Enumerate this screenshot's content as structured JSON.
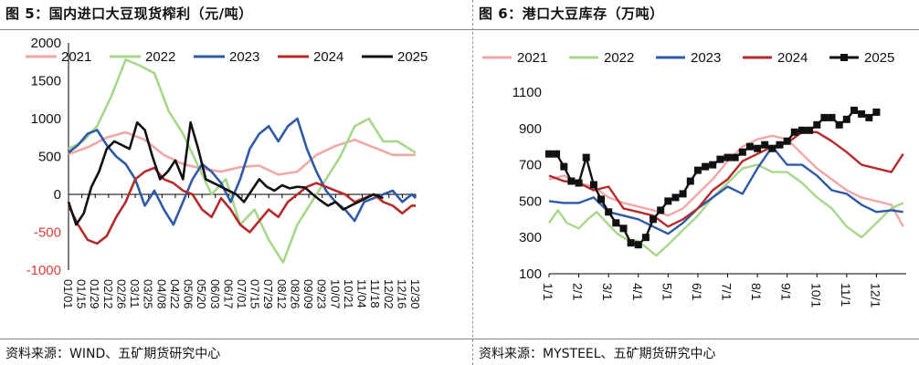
{
  "charts": [
    {
      "title": "图 5：国内进口大豆现货榨利（元/吨）",
      "source": "资料来源：WIND、五矿期货研究中心"
    },
    {
      "title": "图 6：港口大豆库存（万吨）",
      "source": "资料来源：MYSTEEL、五矿期货研究中心"
    }
  ],
  "chart_data": [
    {
      "type": "line",
      "title": "图 5：国内进口大豆现货榨利（元/吨）",
      "xlabel": "",
      "ylabel": "",
      "ylim": [
        -1000,
        2000
      ],
      "yticks": [
        -1000,
        -500,
        0,
        500,
        1000,
        1500,
        2000
      ],
      "xticks": [
        "01/01",
        "01/15",
        "01/29",
        "02/12",
        "02/26",
        "03/11",
        "03/25",
        "04/08",
        "04/22",
        "05/06",
        "05/20",
        "06/03",
        "06/17",
        "07/01",
        "07/15",
        "07/29",
        "08/12",
        "08/26",
        "09/09",
        "09/23",
        "10/07",
        "10/21",
        "11/04",
        "11/18",
        "12/02",
        "12/16",
        "12/30"
      ],
      "legend_position": "top",
      "series": [
        {
          "name": "2021",
          "color": "#f2a7a7",
          "x": [
            0,
            20,
            40,
            60,
            80,
            100,
            120,
            140,
            160,
            180,
            200,
            220,
            240,
            260,
            280,
            300,
            320,
            340,
            364
          ],
          "values": [
            530,
            620,
            750,
            820,
            720,
            520,
            400,
            340,
            300,
            360,
            380,
            260,
            300,
            520,
            640,
            720,
            620,
            520,
            520
          ]
        },
        {
          "name": "2022",
          "color": "#a6d78a",
          "x": [
            0,
            15,
            30,
            45,
            60,
            75,
            90,
            105,
            120,
            135,
            150,
            165,
            180,
            195,
            210,
            225,
            240,
            255,
            270,
            285,
            300,
            315,
            330,
            345,
            364
          ],
          "values": [
            600,
            700,
            900,
            1300,
            1780,
            1700,
            1600,
            1100,
            800,
            400,
            0,
            200,
            -400,
            -200,
            -600,
            -900,
            -400,
            -100,
            200,
            500,
            900,
            1000,
            700,
            700,
            550
          ]
        },
        {
          "name": "2023",
          "color": "#2f5aa8",
          "x": [
            0,
            10,
            20,
            30,
            40,
            50,
            60,
            70,
            80,
            90,
            100,
            110,
            120,
            130,
            140,
            150,
            160,
            170,
            180,
            190,
            200,
            210,
            220,
            230,
            240,
            250,
            260,
            270,
            280,
            290,
            300,
            310,
            320,
            330,
            340,
            350,
            360,
            364
          ],
          "values": [
            550,
            650,
            800,
            850,
            650,
            500,
            400,
            200,
            -150,
            50,
            -200,
            -400,
            -100,
            200,
            400,
            300,
            150,
            -100,
            200,
            600,
            800,
            900,
            700,
            900,
            1000,
            600,
            300,
            50,
            -100,
            -200,
            -350,
            -100,
            -50,
            0,
            50,
            -100,
            0,
            -50
          ]
        },
        {
          "name": "2024",
          "color": "#b72a2a",
          "x": [
            0,
            10,
            20,
            30,
            40,
            50,
            60,
            70,
            80,
            90,
            100,
            110,
            120,
            130,
            140,
            150,
            160,
            170,
            180,
            190,
            200,
            210,
            220,
            230,
            240,
            250,
            260,
            270,
            280,
            290,
            300,
            310,
            320,
            330,
            340,
            350,
            360,
            364
          ],
          "values": [
            -150,
            -400,
            -600,
            -650,
            -550,
            -300,
            -100,
            200,
            300,
            350,
            200,
            150,
            50,
            0,
            -200,
            -300,
            -50,
            -200,
            -400,
            -500,
            -350,
            -200,
            -300,
            -100,
            0,
            100,
            150,
            100,
            50,
            0,
            -100,
            -50,
            0,
            -100,
            -150,
            -250,
            -150,
            -150
          ]
        },
        {
          "name": "2025",
          "color": "#111111",
          "x": [
            0,
            8,
            16,
            24,
            32,
            40,
            48,
            56,
            64,
            72,
            80,
            88,
            96,
            104,
            112,
            120,
            128,
            136,
            144,
            152,
            160,
            168,
            176,
            184,
            192,
            200,
            208,
            216,
            224,
            232,
            240,
            248,
            256,
            264,
            272,
            280,
            288,
            296,
            304,
            312,
            320,
            330
          ],
          "values": [
            -100,
            -400,
            -250,
            100,
            300,
            600,
            700,
            650,
            600,
            950,
            850,
            500,
            200,
            300,
            450,
            200,
            950,
            600,
            200,
            150,
            100,
            50,
            0,
            -100,
            50,
            200,
            100,
            50,
            120,
            80,
            100,
            90,
            0,
            -80,
            -150,
            -100,
            -200,
            -150,
            -100,
            -50,
            0,
            -50
          ]
        }
      ]
    },
    {
      "type": "line",
      "title": "图 6：港口大豆库存（万吨）",
      "xlabel": "",
      "ylabel": "",
      "ylim": [
        100,
        1100
      ],
      "yticks": [
        100,
        300,
        500,
        700,
        900,
        1100
      ],
      "xticks": [
        "1/1",
        "2/1",
        "3/1",
        "4/1",
        "5/1",
        "6/1",
        "7/1",
        "8/1",
        "9/1",
        "10/1",
        "11/1",
        "12/1"
      ],
      "legend_position": "top",
      "series": [
        {
          "name": "2021",
          "color": "#f2a7a7",
          "x": [
            0,
            0.5,
            1,
            1.5,
            2,
            2.5,
            3,
            3.5,
            4,
            4.5,
            5,
            5.5,
            6,
            6.5,
            7,
            7.5,
            8,
            8.5,
            9,
            9.5,
            10,
            10.5,
            11,
            11.5,
            11.9
          ],
          "values": [
            620,
            640,
            600,
            580,
            520,
            490,
            470,
            450,
            420,
            460,
            540,
            620,
            720,
            800,
            840,
            860,
            840,
            760,
            680,
            620,
            560,
            520,
            500,
            480,
            360
          ]
        },
        {
          "name": "2022",
          "color": "#a6d78a",
          "x": [
            0,
            0.3,
            0.6,
            1,
            1.3,
            1.6,
            2,
            2.3,
            2.6,
            3,
            3.3,
            3.6,
            4,
            4.5,
            5,
            5.5,
            6,
            6.5,
            7,
            7.5,
            8,
            8.5,
            9,
            9.5,
            10,
            10.5,
            11,
            11.5,
            11.9
          ],
          "values": [
            380,
            450,
            380,
            350,
            400,
            440,
            370,
            320,
            290,
            280,
            240,
            200,
            260,
            340,
            420,
            520,
            600,
            680,
            700,
            660,
            660,
            600,
            520,
            460,
            360,
            300,
            380,
            460,
            490
          ]
        },
        {
          "name": "2023",
          "color": "#2f5aa8",
          "x": [
            0,
            0.5,
            1,
            1.5,
            2,
            2.5,
            3,
            3.5,
            4,
            4.5,
            5,
            5.5,
            6,
            6.5,
            7,
            7.5,
            8,
            8.5,
            9,
            9.5,
            10,
            10.5,
            11,
            11.5,
            11.9
          ],
          "values": [
            500,
            490,
            490,
            520,
            440,
            420,
            400,
            360,
            320,
            380,
            460,
            520,
            580,
            540,
            680,
            800,
            700,
            700,
            640,
            560,
            540,
            480,
            440,
            450,
            440
          ]
        },
        {
          "name": "2024",
          "color": "#b72a2a",
          "x": [
            0,
            0.5,
            1,
            1.5,
            2,
            2.5,
            3,
            3.5,
            4,
            4.5,
            5,
            5.5,
            6,
            6.5,
            7,
            7.5,
            8,
            8.5,
            9,
            9.5,
            10,
            10.5,
            11,
            11.5,
            11.9
          ],
          "values": [
            640,
            610,
            600,
            560,
            580,
            460,
            440,
            420,
            360,
            400,
            460,
            560,
            620,
            720,
            760,
            800,
            820,
            880,
            880,
            830,
            770,
            700,
            680,
            660,
            760
          ]
        },
        {
          "name": "2025",
          "color": "#111111",
          "marker": "square",
          "x": [
            0,
            0.25,
            0.5,
            0.75,
            1,
            1.25,
            1.5,
            1.75,
            2,
            2.25,
            2.5,
            2.75,
            3,
            3.25,
            3.5,
            3.75,
            4,
            4.25,
            4.5,
            4.75,
            5,
            5.25,
            5.5,
            5.75,
            6,
            6.25,
            6.5,
            6.75,
            7,
            7.25,
            7.5,
            7.75,
            8,
            8.25,
            8.5,
            8.75,
            9,
            9.25,
            9.5,
            9.75,
            10,
            10.25,
            10.5,
            10.75,
            11
          ],
          "values": [
            760,
            760,
            690,
            610,
            600,
            740,
            590,
            510,
            440,
            380,
            350,
            270,
            260,
            300,
            400,
            450,
            500,
            520,
            540,
            610,
            670,
            690,
            700,
            730,
            740,
            740,
            770,
            800,
            790,
            810,
            790,
            810,
            830,
            880,
            890,
            890,
            920,
            960,
            960,
            920,
            950,
            1000,
            980,
            960,
            990
          ]
        }
      ]
    }
  ]
}
